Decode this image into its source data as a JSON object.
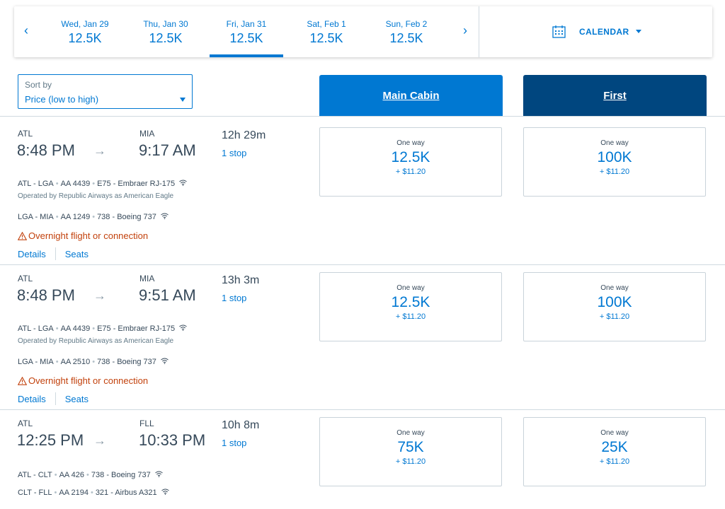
{
  "date_bar": {
    "prev_arrow": "‹",
    "next_arrow": "›",
    "dates": [
      {
        "date": "Wed, Jan 29",
        "price": "12.5K",
        "active": false
      },
      {
        "date": "Thu, Jan 30",
        "price": "12.5K",
        "active": false
      },
      {
        "date": "Fri, Jan 31",
        "price": "12.5K",
        "active": true
      },
      {
        "date": "Sat, Feb 1",
        "price": "12.5K",
        "active": false
      },
      {
        "date": "Sun, Feb 2",
        "price": "12.5K",
        "active": false
      }
    ],
    "calendar_label": "CALENDAR",
    "calendar_icon": "calendar-icon"
  },
  "sort": {
    "label": "Sort by",
    "value": "Price (low to high)"
  },
  "cabins": {
    "main": "Main Cabin",
    "first": "First"
  },
  "colors": {
    "accent": "#0078d2",
    "first_header": "#00467f",
    "warning": "#c2410c"
  },
  "flights": [
    {
      "origin": "ATL",
      "destination": "MIA",
      "depart": "8:48 PM",
      "arrow": "→",
      "arrive": "9:17 AM",
      "duration": "12h 29m",
      "stops": "1 stop",
      "segments": [
        {
          "route": "ATL - LGA",
          "flight": "AA 4439",
          "aircraft": "E75 - Embraer RJ-175",
          "operated_by": "Operated by Republic Airways as American Eagle"
        },
        {
          "route": "LGA - MIA",
          "flight": "AA 1249",
          "aircraft": "738 - Boeing 737",
          "operated_by": ""
        }
      ],
      "warning": "Overnight flight or connection",
      "details_link": "Details",
      "seats_link": "Seats",
      "fares": [
        {
          "label": "One way",
          "points": "12.5K",
          "tax": "+ $11.20"
        },
        {
          "label": "One way",
          "points": "100K",
          "tax": "+ $11.20"
        }
      ]
    },
    {
      "origin": "ATL",
      "destination": "MIA",
      "depart": "8:48 PM",
      "arrow": "→",
      "arrive": "9:51 AM",
      "duration": "13h 3m",
      "stops": "1 stop",
      "segments": [
        {
          "route": "ATL - LGA",
          "flight": "AA 4439",
          "aircraft": "E75 - Embraer RJ-175",
          "operated_by": "Operated by Republic Airways as American Eagle"
        },
        {
          "route": "LGA - MIA",
          "flight": "AA 2510",
          "aircraft": "738 - Boeing 737",
          "operated_by": ""
        }
      ],
      "warning": "Overnight flight or connection",
      "details_link": "Details",
      "seats_link": "Seats",
      "fares": [
        {
          "label": "One way",
          "points": "12.5K",
          "tax": "+ $11.20"
        },
        {
          "label": "One way",
          "points": "100K",
          "tax": "+ $11.20"
        }
      ]
    },
    {
      "origin": "ATL",
      "destination": "FLL",
      "depart": "12:25 PM",
      "arrow": "→",
      "arrive": "10:33 PM",
      "duration": "10h 8m",
      "stops": "1 stop",
      "segments": [
        {
          "route": "ATL - CLT",
          "flight": "AA 426",
          "aircraft": "738 - Boeing 737",
          "operated_by": ""
        },
        {
          "route": "CLT - FLL",
          "flight": "AA 2194",
          "aircraft": "321 - Airbus A321",
          "operated_by": ""
        }
      ],
      "warning": "",
      "details_link": "",
      "seats_link": "",
      "fares": [
        {
          "label": "One way",
          "points": "75K",
          "tax": "+ $11.20"
        },
        {
          "label": "One way",
          "points": "25K",
          "tax": "+ $11.20"
        }
      ]
    }
  ]
}
